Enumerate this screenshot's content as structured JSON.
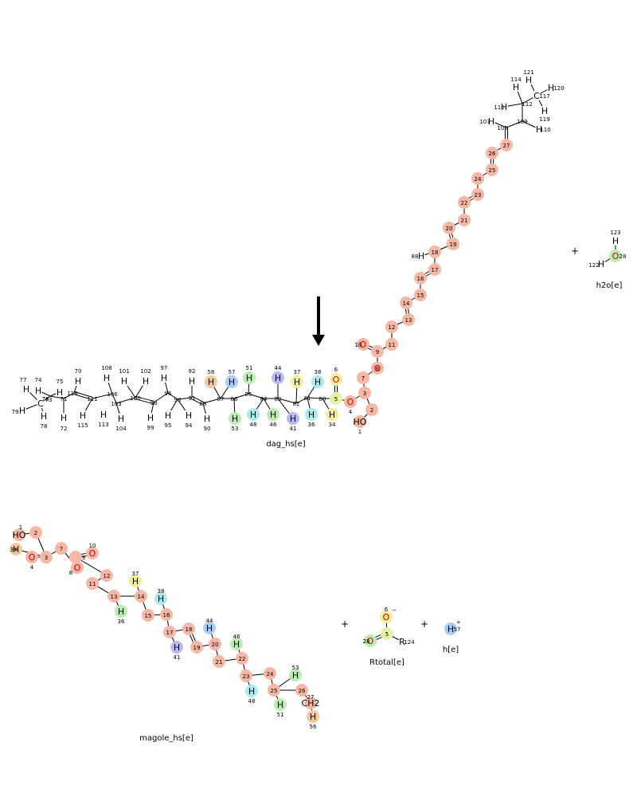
{
  "colors": {
    "salmon": "#f7b7a6",
    "orange": "#f8c89b",
    "yellow": "#f3ee9a",
    "green": "#b9eeb0",
    "cyan": "#a9ecef",
    "blue": "#a9cdf7",
    "violet": "#b9b9f4",
    "lime": "#e3f4a8",
    "oxygen": "#d00000",
    "arrow": "#000000"
  },
  "reaction": {
    "plus_sign": "+",
    "arrow": "down-arrow-icon",
    "species": [
      {
        "id": "dag",
        "label": "dag_hs[e]"
      },
      {
        "id": "h2o",
        "label": "h2o[e]"
      },
      {
        "id": "magole",
        "label": "magole_hs[e]"
      },
      {
        "id": "rtotal",
        "label": "Rtotal[e]"
      },
      {
        "id": "h",
        "label": "h[e]"
      }
    ]
  },
  "molecules": {
    "dag": {
      "atoms": [
        {
          "id": "c77",
          "sym": "H",
          "num": "77"
        },
        {
          "id": "c74",
          "sym": "H",
          "num": "74"
        },
        {
          "id": "c75",
          "sym": "H",
          "num": "75"
        },
        {
          "id": "c76",
          "sym": "C",
          "num": "76"
        },
        {
          "id": "c79",
          "sym": "H",
          "num": "79"
        },
        {
          "id": "c78",
          "sym": "H",
          "num": "78"
        },
        {
          "id": "c73",
          "sym": "",
          "num": "73"
        },
        {
          "id": "c72",
          "sym": "H",
          "num": "72"
        },
        {
          "id": "c70",
          "sym": "H",
          "num": "70"
        },
        {
          "id": "c71",
          "sym": "",
          "num": "71"
        },
        {
          "id": "c118",
          "sym": "",
          "num": "118"
        },
        {
          "id": "c111",
          "sym": "",
          "num": "111"
        },
        {
          "id": "c115",
          "sym": "H",
          "num": "115"
        },
        {
          "id": "c108",
          "sym": "H",
          "num": "108"
        },
        {
          "id": "c113",
          "sym": "H",
          "num": "113"
        },
        {
          "id": "c106",
          "sym": "",
          "num": "106"
        },
        {
          "id": "c104",
          "sym": "H",
          "num": "104"
        },
        {
          "id": "c103",
          "sym": "",
          "num": "103"
        },
        {
          "id": "c101",
          "sym": "H",
          "num": "101"
        },
        {
          "id": "c100",
          "sym": "",
          "num": "100"
        },
        {
          "id": "c102",
          "sym": "H",
          "num": "102"
        },
        {
          "id": "c98",
          "sym": "",
          "num": "98"
        },
        {
          "id": "c99",
          "sym": "H",
          "num": "99"
        },
        {
          "id": "c96",
          "sym": "",
          "num": "96"
        },
        {
          "id": "c97",
          "sym": "H",
          "num": "97"
        },
        {
          "id": "c93",
          "sym": "",
          "num": "93"
        },
        {
          "id": "c95",
          "sym": "H",
          "num": "95"
        },
        {
          "id": "c94",
          "sym": "H",
          "num": "94"
        },
        {
          "id": "c91",
          "sym": "",
          "num": "91"
        },
        {
          "id": "c92",
          "sym": "H",
          "num": "92"
        },
        {
          "id": "c89",
          "sym": "",
          "num": "89"
        },
        {
          "id": "c90",
          "sym": "H",
          "num": "90"
        },
        {
          "id": "c87",
          "sym": "",
          "num": "87"
        },
        {
          "id": "c56",
          "sym": "H",
          "num": "56"
        },
        {
          "id": "c57",
          "sym": "H",
          "num": "57"
        },
        {
          "id": "c86",
          "sym": "",
          "num": "86"
        },
        {
          "id": "c53",
          "sym": "H",
          "num": "53"
        },
        {
          "id": "c85",
          "sym": "",
          "num": "85"
        },
        {
          "id": "c51",
          "sym": "H",
          "num": "51"
        },
        {
          "id": "c48",
          "sym": "H",
          "num": "48"
        },
        {
          "id": "c84",
          "sym": "",
          "num": "84"
        },
        {
          "id": "c46",
          "sym": "H",
          "num": "46"
        },
        {
          "id": "c83",
          "sym": "",
          "num": "83"
        },
        {
          "id": "c44",
          "sym": "H",
          "num": "44"
        },
        {
          "id": "c41",
          "sym": "H",
          "num": "41"
        },
        {
          "id": "c37",
          "sym": "H",
          "num": "37"
        },
        {
          "id": "c82",
          "sym": "",
          "num": "82"
        },
        {
          "id": "c81",
          "sym": "",
          "num": "81"
        },
        {
          "id": "c38",
          "sym": "H",
          "num": "38"
        },
        {
          "id": "c36",
          "sym": "H",
          "num": "36"
        },
        {
          "id": "c80",
          "sym": "",
          "num": "80"
        },
        {
          "id": "c34",
          "sym": "H",
          "num": "34"
        },
        {
          "id": "c6",
          "sym": "O",
          "num": "6"
        },
        {
          "id": "c5",
          "sym": "",
          "num": "5"
        },
        {
          "id": "c4",
          "sym": "O",
          "num": "4"
        },
        {
          "id": "c3",
          "sym": "",
          "num": "3"
        },
        {
          "id": "c2",
          "sym": "",
          "num": "2"
        },
        {
          "id": "c1",
          "sym": "HO",
          "num": "1"
        },
        {
          "id": "c7",
          "sym": "",
          "num": "7"
        },
        {
          "id": "c8",
          "sym": "O",
          "num": "8"
        },
        {
          "id": "c9",
          "sym": "",
          "num": "9"
        },
        {
          "id": "c10",
          "sym": "O",
          "num": "10"
        },
        {
          "id": "c11",
          "sym": "",
          "num": "11"
        },
        {
          "id": "c12",
          "sym": "",
          "num": "12"
        },
        {
          "id": "c13",
          "sym": "",
          "num": "13"
        },
        {
          "id": "c14",
          "sym": "",
          "num": "14"
        },
        {
          "id": "c15",
          "sym": "",
          "num": "15"
        },
        {
          "id": "c16",
          "sym": "",
          "num": "16"
        },
        {
          "id": "c17",
          "sym": "",
          "num": "17"
        },
        {
          "id": "c18",
          "sym": "",
          "num": "18"
        },
        {
          "id": "c88",
          "sym": "H",
          "num": "88"
        },
        {
          "id": "c19",
          "sym": "",
          "num": "19"
        },
        {
          "id": "c20",
          "sym": "",
          "num": "20"
        },
        {
          "id": "c21",
          "sym": "",
          "num": "21"
        },
        {
          "id": "c22",
          "sym": "",
          "num": "22"
        },
        {
          "id": "c23",
          "sym": "",
          "num": "23"
        },
        {
          "id": "c24",
          "sym": "",
          "num": "24"
        },
        {
          "id": "c25",
          "sym": "",
          "num": "25"
        },
        {
          "id": "c26",
          "sym": "",
          "num": "26"
        },
        {
          "id": "c27",
          "sym": "",
          "num": "27"
        },
        {
          "id": "c105",
          "sym": "",
          "num": "105"
        },
        {
          "id": "c109",
          "sym": "",
          "num": "109"
        },
        {
          "id": "c107",
          "sym": "H",
          "num": "107"
        },
        {
          "id": "c110",
          "sym": "H",
          "num": "110"
        },
        {
          "id": "c112",
          "sym": "",
          "num": "112"
        },
        {
          "id": "c116",
          "sym": "H",
          "num": "116"
        },
        {
          "id": "c114",
          "sym": "H",
          "num": "114"
        },
        {
          "id": "c121",
          "sym": "H",
          "num": "121"
        },
        {
          "id": "c117",
          "sym": "C",
          "num": "117"
        },
        {
          "id": "c120",
          "sym": "H",
          "num": "120"
        },
        {
          "id": "c119",
          "sym": "H",
          "num": "119"
        }
      ]
    },
    "h2o": {
      "atoms": [
        {
          "id": "w123",
          "sym": "H",
          "num": "123"
        },
        {
          "id": "w28",
          "sym": "O",
          "num": "28"
        },
        {
          "id": "w122",
          "sym": "H",
          "num": "122"
        }
      ]
    },
    "magole": {
      "atoms": [
        {
          "id": "m1",
          "sym": "HO",
          "num": "1"
        },
        {
          "id": "m2",
          "sym": "",
          "num": "2"
        },
        {
          "id": "m34",
          "sym": "H",
          "num": "34"
        },
        {
          "id": "m4",
          "sym": "O",
          "num": "4"
        },
        {
          "id": "m3",
          "sym": "",
          "num": "3"
        },
        {
          "id": "m7",
          "sym": "",
          "num": "7"
        },
        {
          "id": "m9",
          "sym": "",
          "num": "9"
        },
        {
          "id": "m10",
          "sym": "O",
          "num": "10"
        },
        {
          "id": "m8",
          "sym": "O",
          "num": "8"
        },
        {
          "id": "m12",
          "sym": "",
          "num": "12"
        },
        {
          "id": "m11",
          "sym": "",
          "num": "11"
        },
        {
          "id": "m13",
          "sym": "",
          "num": "13"
        },
        {
          "id": "m37",
          "sym": "H",
          "num": "37"
        },
        {
          "id": "m14",
          "sym": "",
          "num": "14"
        },
        {
          "id": "m36",
          "sym": "H",
          "num": "36"
        },
        {
          "id": "m15",
          "sym": "",
          "num": "15"
        },
        {
          "id": "m38",
          "sym": "H",
          "num": "38"
        },
        {
          "id": "m16",
          "sym": "",
          "num": "16"
        },
        {
          "id": "m17",
          "sym": "",
          "num": "17"
        },
        {
          "id": "m41",
          "sym": "H",
          "num": "41"
        },
        {
          "id": "m18",
          "sym": "",
          "num": "18"
        },
        {
          "id": "m19",
          "sym": "",
          "num": "19"
        },
        {
          "id": "m44",
          "sym": "H",
          "num": "44"
        },
        {
          "id": "m20",
          "sym": "",
          "num": "20"
        },
        {
          "id": "m21",
          "sym": "",
          "num": "21"
        },
        {
          "id": "m46",
          "sym": "H",
          "num": "46"
        },
        {
          "id": "m22",
          "sym": "",
          "num": "22"
        },
        {
          "id": "m23",
          "sym": "",
          "num": "23"
        },
        {
          "id": "m48",
          "sym": "H",
          "num": "48"
        },
        {
          "id": "m24",
          "sym": "",
          "num": "24"
        },
        {
          "id": "m25",
          "sym": "",
          "num": "25"
        },
        {
          "id": "m51",
          "sym": "H",
          "num": "51"
        },
        {
          "id": "m53",
          "sym": "H",
          "num": "53"
        },
        {
          "id": "m26",
          "sym": "",
          "num": "26"
        },
        {
          "id": "m27",
          "sym": "CH2",
          "num": "27"
        },
        {
          "id": "m56",
          "sym": "H",
          "num": "56"
        }
      ]
    },
    "rtotal": {
      "atoms": [
        {
          "id": "r6",
          "sym": "O",
          "num": "6",
          "charge": "−"
        },
        {
          "id": "r5",
          "sym": "",
          "num": "5"
        },
        {
          "id": "r28",
          "sym": "O",
          "num": "28"
        },
        {
          "id": "r124",
          "sym": "R",
          "num": "124"
        }
      ]
    },
    "h": {
      "atoms": [
        {
          "id": "h57",
          "sym": "H",
          "num": "57",
          "charge": "+"
        }
      ]
    }
  }
}
